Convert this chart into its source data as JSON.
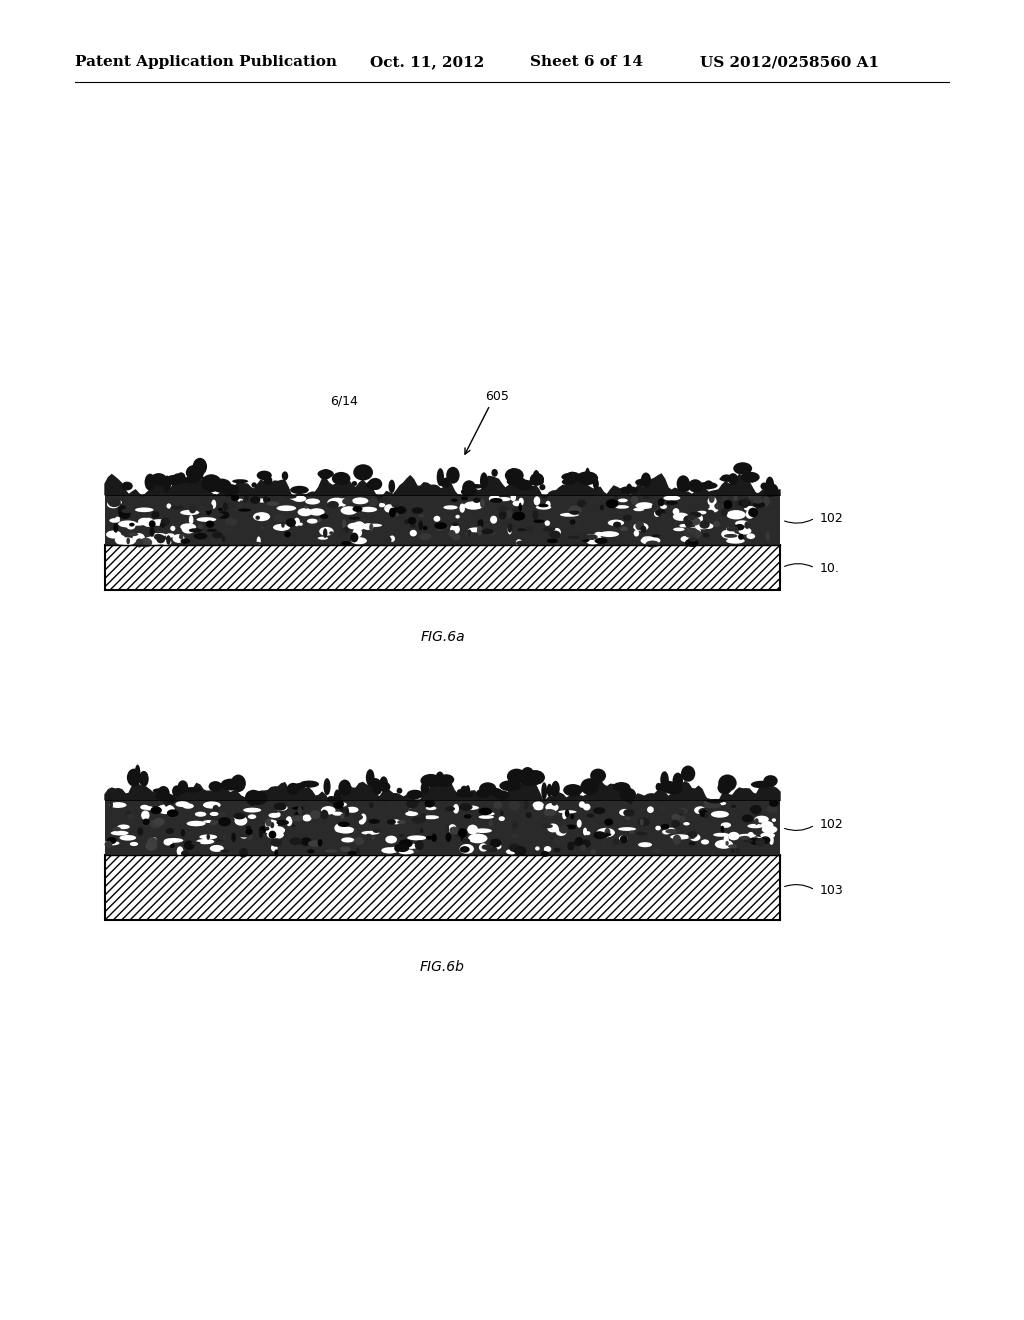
{
  "background_color": "#ffffff",
  "header_text": "Patent Application Publication",
  "header_date": "Oct. 11, 2012",
  "header_sheet": "Sheet 6 of 14",
  "header_patent": "US 2012/0258560 A1",
  "page_label": "6/14",
  "arrow_label": "605",
  "fig6a_label": "FIG.6a",
  "fig6b_label": "FIG.6b",
  "label_102a": "102",
  "label_10": "10.",
  "label_102b": "102",
  "label_103": "103"
}
